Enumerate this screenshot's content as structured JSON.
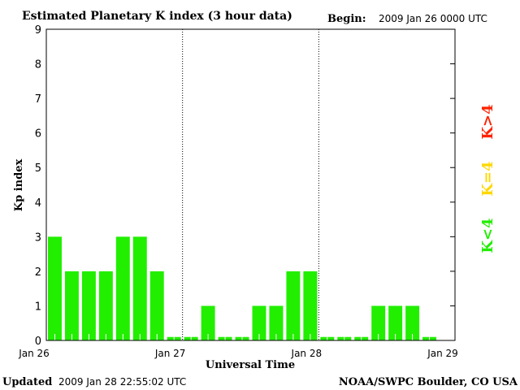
{
  "chart_data": {
    "type": "bar",
    "title": "Estimated Planetary K index (3 hour data)",
    "begin_label": "Begin:",
    "begin_value": "2009 Jan 26 0000 UTC",
    "ylabel": "Kp index",
    "xlabel": "Universal Time",
    "ylim": [
      0,
      9
    ],
    "yticks": [
      "0",
      "1",
      "2",
      "3",
      "4",
      "5",
      "6",
      "7",
      "8",
      "9"
    ],
    "xticks": [
      "Jan 26",
      "Jan 27",
      "Jan 28",
      "Jan 29"
    ],
    "interval_hours": 3,
    "values": [
      3,
      2,
      2,
      2,
      3,
      3,
      2,
      0,
      0,
      1,
      0,
      0,
      1,
      1,
      2,
      2,
      0,
      0,
      0,
      1,
      1,
      1,
      0
    ],
    "legend": [
      {
        "label": "K<4",
        "color": "#22ee00"
      },
      {
        "label": "K=4",
        "color": "#ffd700"
      },
      {
        "label": "K>4",
        "color": "#ff2200"
      }
    ],
    "legend_placement": "right",
    "day_separators": "dotted"
  },
  "footer": {
    "updated_label": "Updated",
    "updated_value": "2009 Jan 28 22:55:02 UTC",
    "credit": "NOAA/SWPC Boulder, CO USA"
  }
}
